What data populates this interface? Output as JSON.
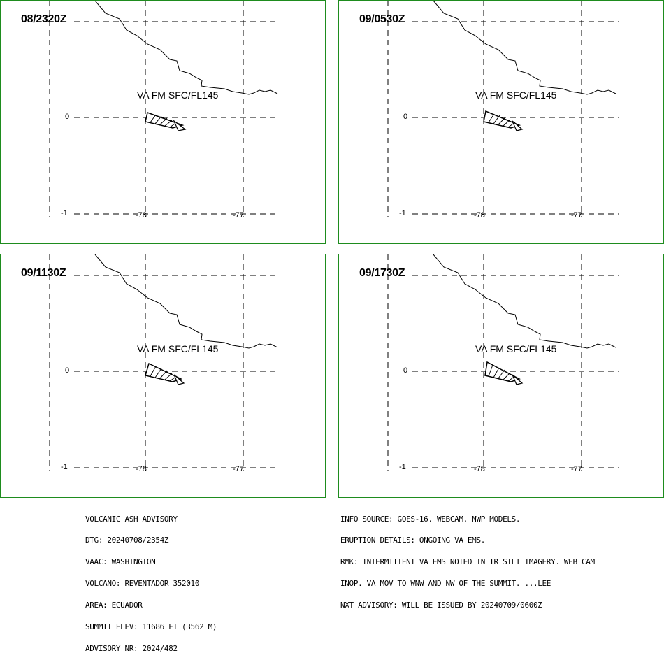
{
  "panels": [
    {
      "time": "08/2320Z",
      "ash_label": "VA FM SFC/FL145"
    },
    {
      "time": "09/0530Z",
      "ash_label": "VA FM SFC/FL145"
    },
    {
      "time": "09/1130Z",
      "ash_label": "VA FM SFC/FL145"
    },
    {
      "time": "09/1730Z",
      "ash_label": "VA FM SFC/FL145"
    }
  ],
  "ticks": {
    "lat_0": "0",
    "lat_m1": "-1",
    "lon_m78": "-78",
    "lon_m77": "-77"
  },
  "advisory_left": [
    "VOLCANIC ASH ADVISORY",
    "DTG: 20240708/2354Z",
    "VAAC: WASHINGTON",
    "VOLCANO: REVENTADOR 352010",
    "AREA: ECUADOR",
    "SUMMIT ELEV: 11686 FT (3562 M)",
    "ADVISORY NR: 2024/482"
  ],
  "advisory_right": [
    "INFO SOURCE: GOES-16. WEBCAM. NWP MODELS.",
    "ERUPTION DETAILS: ONGOING VA EMS.",
    "RMK: INTERMITTENT VA EMS NOTED IN IR STLT IMAGERY. WEB CAM",
    "INOP. VA MOV TO WNW AND NW OF THE SUMMIT. ...LEE",
    "NXT ADVISORY: WILL BE ISSUED BY 20240709/0600Z"
  ],
  "colors": {
    "panel_border": "#1e8c1e"
  }
}
